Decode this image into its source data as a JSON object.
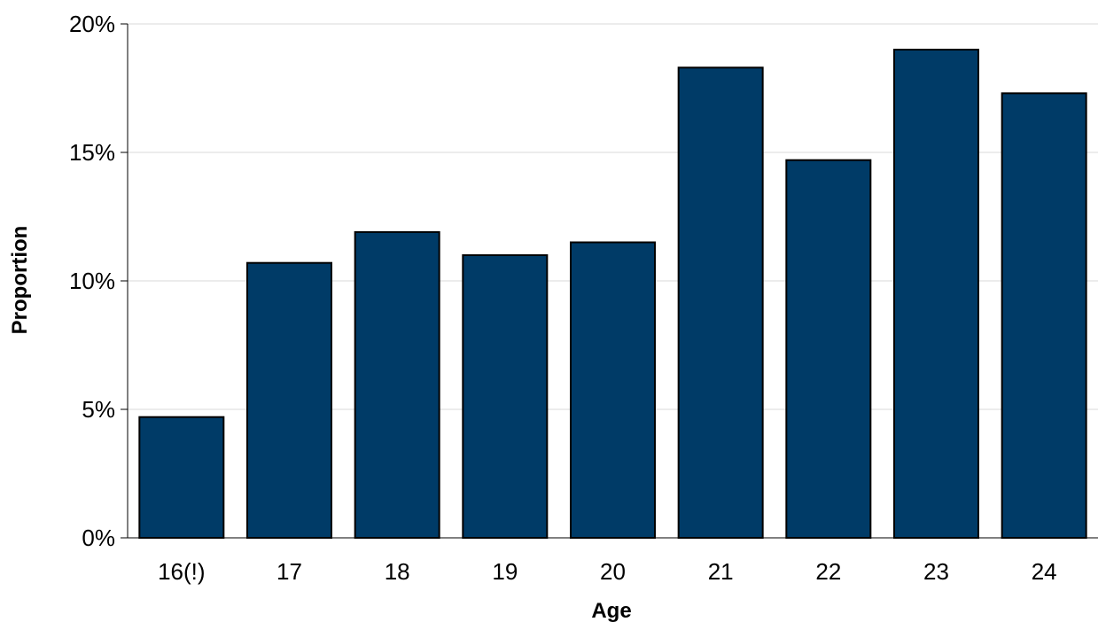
{
  "chart_data": {
    "type": "bar",
    "title": "",
    "xlabel": "Age",
    "ylabel": "Proportion",
    "categories": [
      "16(!)",
      "17",
      "18",
      "19",
      "20",
      "21",
      "22",
      "23",
      "24"
    ],
    "values": [
      4.7,
      10.7,
      11.9,
      11.0,
      11.5,
      18.3,
      14.7,
      19.0,
      17.3
    ],
    "value_unit": "%",
    "ylim": [
      0,
      20
    ],
    "yticks": [
      0,
      5,
      10,
      15,
      20
    ],
    "ytick_labels": [
      "0%",
      "5%",
      "10%",
      "15%",
      "20%"
    ],
    "grid": true,
    "legend": "none",
    "bar_color": "#003b67",
    "bar_edge_color": "#000000",
    "grid_color": "#d9d9d9"
  }
}
